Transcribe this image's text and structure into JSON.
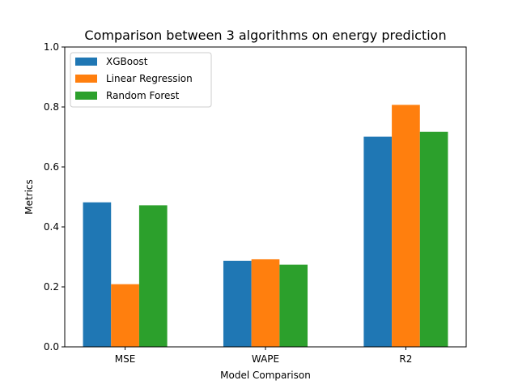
{
  "chart_data": {
    "type": "bar",
    "title": "Comparison between 3 algorithms on energy prediction",
    "xlabel": "Model Comparison",
    "ylabel": "Metrics",
    "categories": [
      "MSE",
      "WAPE",
      "R2"
    ],
    "ylim": [
      0,
      1.0
    ],
    "yticks": [
      "0.0",
      "0.2",
      "0.4",
      "0.6",
      "0.8",
      "1.0"
    ],
    "grid": false,
    "legend_position": "top-left",
    "series": [
      {
        "name": "XGBoost",
        "color": "#1f77b4",
        "values": [
          0.482,
          0.287,
          0.701
        ]
      },
      {
        "name": "Linear Regression",
        "color": "#ff7f0e",
        "values": [
          0.209,
          0.292,
          0.807
        ]
      },
      {
        "name": "Random Forest",
        "color": "#2ca02c",
        "values": [
          0.472,
          0.274,
          0.717
        ]
      }
    ]
  }
}
